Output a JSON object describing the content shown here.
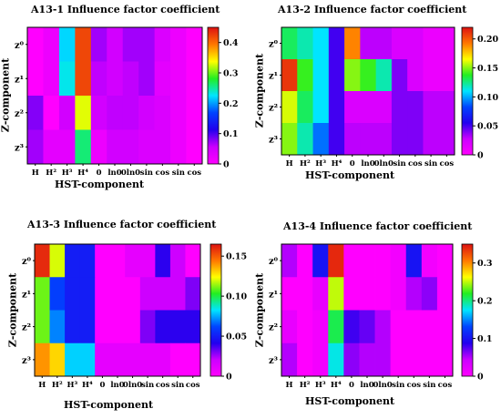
{
  "colors": {
    "scale": [
      "#ff00ff",
      "#cc00ff",
      "#2200ee",
      "#0044ff",
      "#00e5ff",
      "#22ee22",
      "#ffff00",
      "#ff7700",
      "#dd1111"
    ]
  },
  "chart_data": [
    {
      "type": "heatmap",
      "title": "A13-1 Influence factor coefficient",
      "xlabel": "HST-component",
      "ylabel": "Z-component",
      "x_tick_labels": [
        "H",
        "H²",
        "H³",
        "H⁴",
        "0",
        "ln0",
        "0ln0",
        "sin",
        "cos",
        "sin",
        "cos"
      ],
      "y_tick_labels": [
        "z⁰",
        "z¹",
        "z²",
        "z³"
      ],
      "y_tick_order": "top-to-bottom",
      "colorbar_ticks": [
        "0",
        "0.1",
        "0.2",
        "0.3",
        "0.4"
      ],
      "zlim": [
        0,
        0.45
      ],
      "values": [
        [
          0.0,
          0.02,
          0.22,
          0.42,
          0.07,
          0.05,
          0.07,
          0.07,
          0.04,
          0.02,
          0.0
        ],
        [
          0.0,
          0.02,
          0.23,
          0.42,
          0.06,
          0.05,
          0.06,
          0.07,
          0.03,
          0.02,
          0.0
        ],
        [
          0.08,
          0.0,
          0.05,
          0.33,
          0.05,
          0.06,
          0.06,
          0.05,
          0.04,
          0.02,
          0.0
        ],
        [
          0.07,
          0.03,
          0.03,
          0.26,
          0.02,
          0.05,
          0.05,
          0.04,
          0.04,
          0.02,
          0.0
        ]
      ]
    },
    {
      "type": "heatmap",
      "title": "A13-2 Influence factor coefficient",
      "xlabel": "HST-component",
      "ylabel": "Z-component",
      "x_tick_labels": [
        "H",
        "H²",
        "H³",
        "H⁴",
        "0",
        "ln0",
        "0ln0",
        "sin",
        "cos",
        "sin",
        "cos"
      ],
      "y_tick_labels": [
        "z⁰",
        "z¹",
        "z²",
        "z³"
      ],
      "y_tick_order": "top-to-bottom",
      "colorbar_ticks": [
        "0",
        "0.05",
        "0.10",
        "0.15",
        "0.20"
      ],
      "zlim": [
        0,
        0.22
      ],
      "values": [
        [
          0.13,
          0.12,
          0.11,
          0.05,
          0.19,
          0.03,
          0.03,
          0.02,
          0.02,
          0.01,
          0.01
        ],
        [
          0.21,
          0.14,
          0.11,
          0.05,
          0.15,
          0.14,
          0.12,
          0.04,
          0.02,
          0.01,
          0.01
        ],
        [
          0.16,
          0.13,
          0.11,
          0.05,
          0.02,
          0.02,
          0.02,
          0.04,
          0.04,
          0.03,
          0.03
        ],
        [
          0.15,
          0.12,
          0.09,
          0.05,
          0.03,
          0.03,
          0.03,
          0.04,
          0.04,
          0.03,
          0.03
        ]
      ]
    },
    {
      "type": "heatmap",
      "title": "A13-3 Influence factor coefficient",
      "xlabel": "HST-component",
      "ylabel": "Z-component",
      "x_tick_labels": [
        "H",
        "H²",
        "H³",
        "H⁴",
        "0",
        "ln0",
        "0ln0",
        "sin",
        "cos",
        "sin",
        "cos"
      ],
      "y_tick_labels": [
        "z⁰",
        "z¹",
        "z²",
        "z³"
      ],
      "y_tick_order": "top-to-bottom",
      "colorbar_ticks": [
        "0",
        "0.05",
        "0.10",
        "0.15"
      ],
      "zlim": [
        0,
        0.165
      ],
      "values": [
        [
          0.16,
          0.12,
          0.05,
          0.05,
          0.0,
          0.0,
          0.01,
          0.01,
          0.04,
          0.02,
          0.0
        ],
        [
          0.11,
          0.06,
          0.05,
          0.05,
          0.0,
          0.0,
          0.0,
          0.02,
          0.02,
          0.02,
          0.03
        ],
        [
          0.11,
          0.07,
          0.05,
          0.05,
          0.0,
          0.0,
          0.0,
          0.03,
          0.04,
          0.04,
          0.04
        ],
        [
          0.14,
          0.13,
          0.08,
          0.08,
          0.01,
          0.01,
          0.01,
          0.01,
          0.01,
          0.0,
          0.0
        ]
      ]
    },
    {
      "type": "heatmap",
      "title": "A13-4  Influence factor coefficient",
      "xlabel": "HST-component",
      "ylabel": "Z-component",
      "x_tick_labels": [
        "H",
        "H²",
        "H³",
        "H⁴",
        "0",
        "ln0",
        "0ln0",
        "sin",
        "cos",
        "sin",
        "cos"
      ],
      "y_tick_labels": [
        "z⁰",
        "z¹",
        "z²",
        "z³"
      ],
      "y_tick_order": "top-to-bottom",
      "colorbar_ticks": [
        "0",
        "0.1",
        "0.2",
        "0.3"
      ],
      "zlim": [
        0,
        0.35
      ],
      "values": [
        [
          0.05,
          0.0,
          0.1,
          0.34,
          0.0,
          0.0,
          0.0,
          0.01,
          0.1,
          0.01,
          0.0
        ],
        [
          0.0,
          0.0,
          0.02,
          0.25,
          0.0,
          0.0,
          0.0,
          0.01,
          0.05,
          0.06,
          0.0
        ],
        [
          0.02,
          0.0,
          0.01,
          0.21,
          0.08,
          0.07,
          0.05,
          0.0,
          0.0,
          0.0,
          0.0
        ],
        [
          0.05,
          0.0,
          0.01,
          0.18,
          0.06,
          0.05,
          0.05,
          0.0,
          0.0,
          0.0,
          0.0
        ]
      ]
    }
  ]
}
